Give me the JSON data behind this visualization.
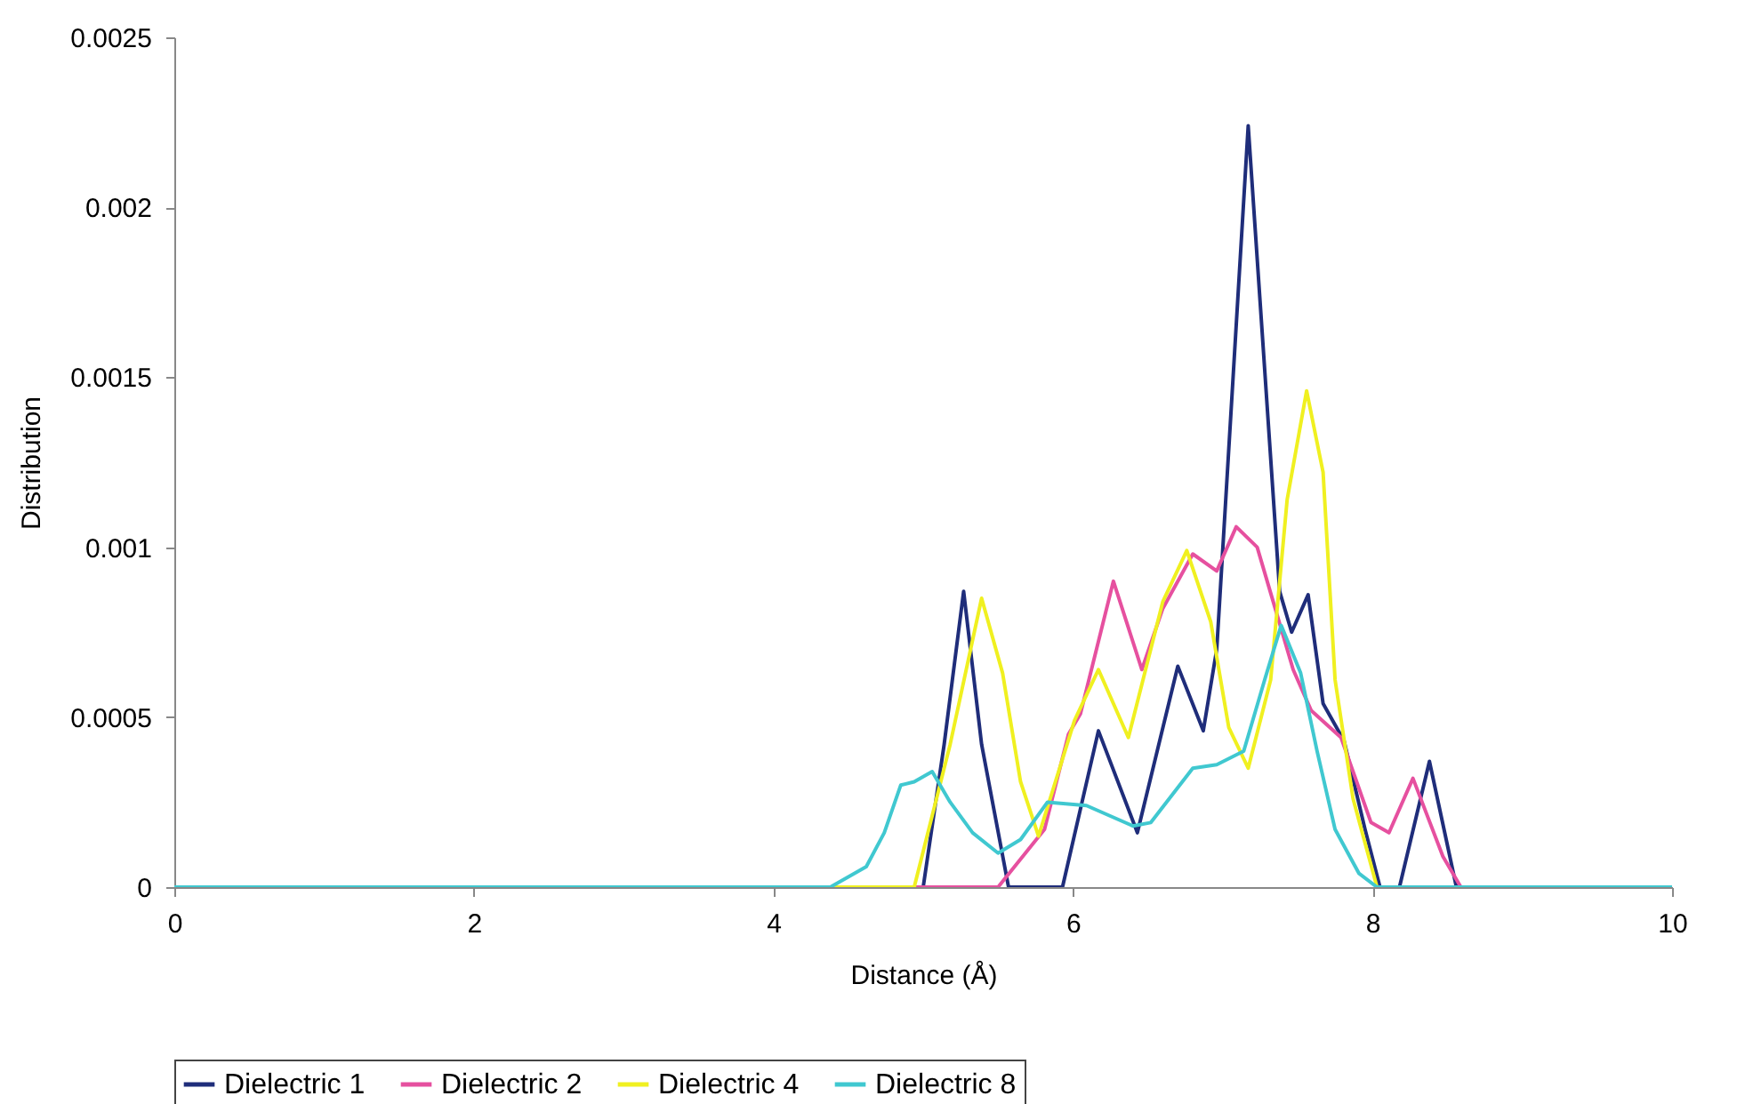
{
  "chart_data": {
    "type": "line",
    "xlabel": "Distance (Å)",
    "ylabel": "Distribution",
    "xlim": [
      0,
      10
    ],
    "xticks": [
      0,
      2,
      4,
      6,
      8,
      10
    ],
    "ylim": [
      0,
      0.0025
    ],
    "yticks": [
      0,
      0.0005,
      0.001,
      0.0015,
      0.002,
      0.0025
    ],
    "grid": false,
    "legend": "bottom",
    "marker": "none",
    "line_style": "solid",
    "series": [
      {
        "name": "Dielectric 1",
        "color": "#1f2d7a",
        "x": [
          0,
          5.0,
          5.14,
          5.27,
          5.39,
          5.57,
          5.93,
          6.17,
          6.43,
          6.7,
          6.87,
          6.96,
          7.17,
          7.38,
          7.46,
          7.57,
          7.67,
          7.81,
          7.95,
          8.05,
          8.18,
          8.38,
          8.56,
          10
        ],
        "values": [
          0,
          0,
          0.00042,
          0.00087,
          0.00042,
          0,
          0,
          0.00046,
          0.00016,
          0.00065,
          0.00046,
          0.0007,
          0.00224,
          0.00087,
          0.00075,
          0.00086,
          0.00054,
          0.00043,
          0.00017,
          0,
          0,
          0.00037,
          0,
          0
        ]
      },
      {
        "name": "Dielectric 2",
        "color": "#e6509f",
        "x": [
          0,
          5.5,
          5.81,
          5.97,
          6.05,
          6.27,
          6.46,
          6.6,
          6.8,
          6.96,
          7.09,
          7.23,
          7.35,
          7.47,
          7.59,
          7.79,
          7.99,
          8.11,
          8.27,
          8.47,
          8.59,
          10
        ],
        "values": [
          0,
          0,
          0.00017,
          0.00045,
          0.00051,
          0.0009,
          0.00064,
          0.00082,
          0.00098,
          0.00093,
          0.00106,
          0.001,
          0.00082,
          0.00064,
          0.00052,
          0.00044,
          0.00019,
          0.00016,
          0.00032,
          9e-05,
          0,
          0
        ]
      },
      {
        "name": "Dielectric 4",
        "color": "#f0f020",
        "x": [
          0,
          4.94,
          5.18,
          5.39,
          5.53,
          5.65,
          5.77,
          6.01,
          6.17,
          6.37,
          6.6,
          6.76,
          6.92,
          7.04,
          7.17,
          7.32,
          7.43,
          7.56,
          7.67,
          7.75,
          7.87,
          8.03,
          10
        ],
        "values": [
          0,
          0,
          0.00042,
          0.00085,
          0.00063,
          0.00031,
          0.00015,
          0.00049,
          0.00064,
          0.00044,
          0.00084,
          0.00099,
          0.00078,
          0.00047,
          0.00035,
          0.00061,
          0.00114,
          0.00146,
          0.00122,
          0.00061,
          0.00026,
          0,
          0
        ]
      },
      {
        "name": "Dielectric 8",
        "color": "#40c8d0",
        "x": [
          0,
          4.38,
          4.62,
          4.74,
          4.85,
          4.94,
          5.06,
          5.18,
          5.33,
          5.5,
          5.65,
          5.83,
          6.09,
          6.4,
          6.52,
          6.8,
          6.96,
          7.14,
          7.28,
          7.39,
          7.52,
          7.63,
          7.75,
          7.91,
          8.03,
          10
        ],
        "values": [
          0,
          0,
          6e-05,
          0.00016,
          0.0003,
          0.00031,
          0.00034,
          0.00025,
          0.00016,
          0.0001,
          0.00014,
          0.00025,
          0.00024,
          0.00018,
          0.00019,
          0.00035,
          0.00036,
          0.0004,
          0.00061,
          0.00077,
          0.00063,
          0.0004,
          0.00017,
          4e-05,
          0,
          0
        ]
      }
    ]
  }
}
